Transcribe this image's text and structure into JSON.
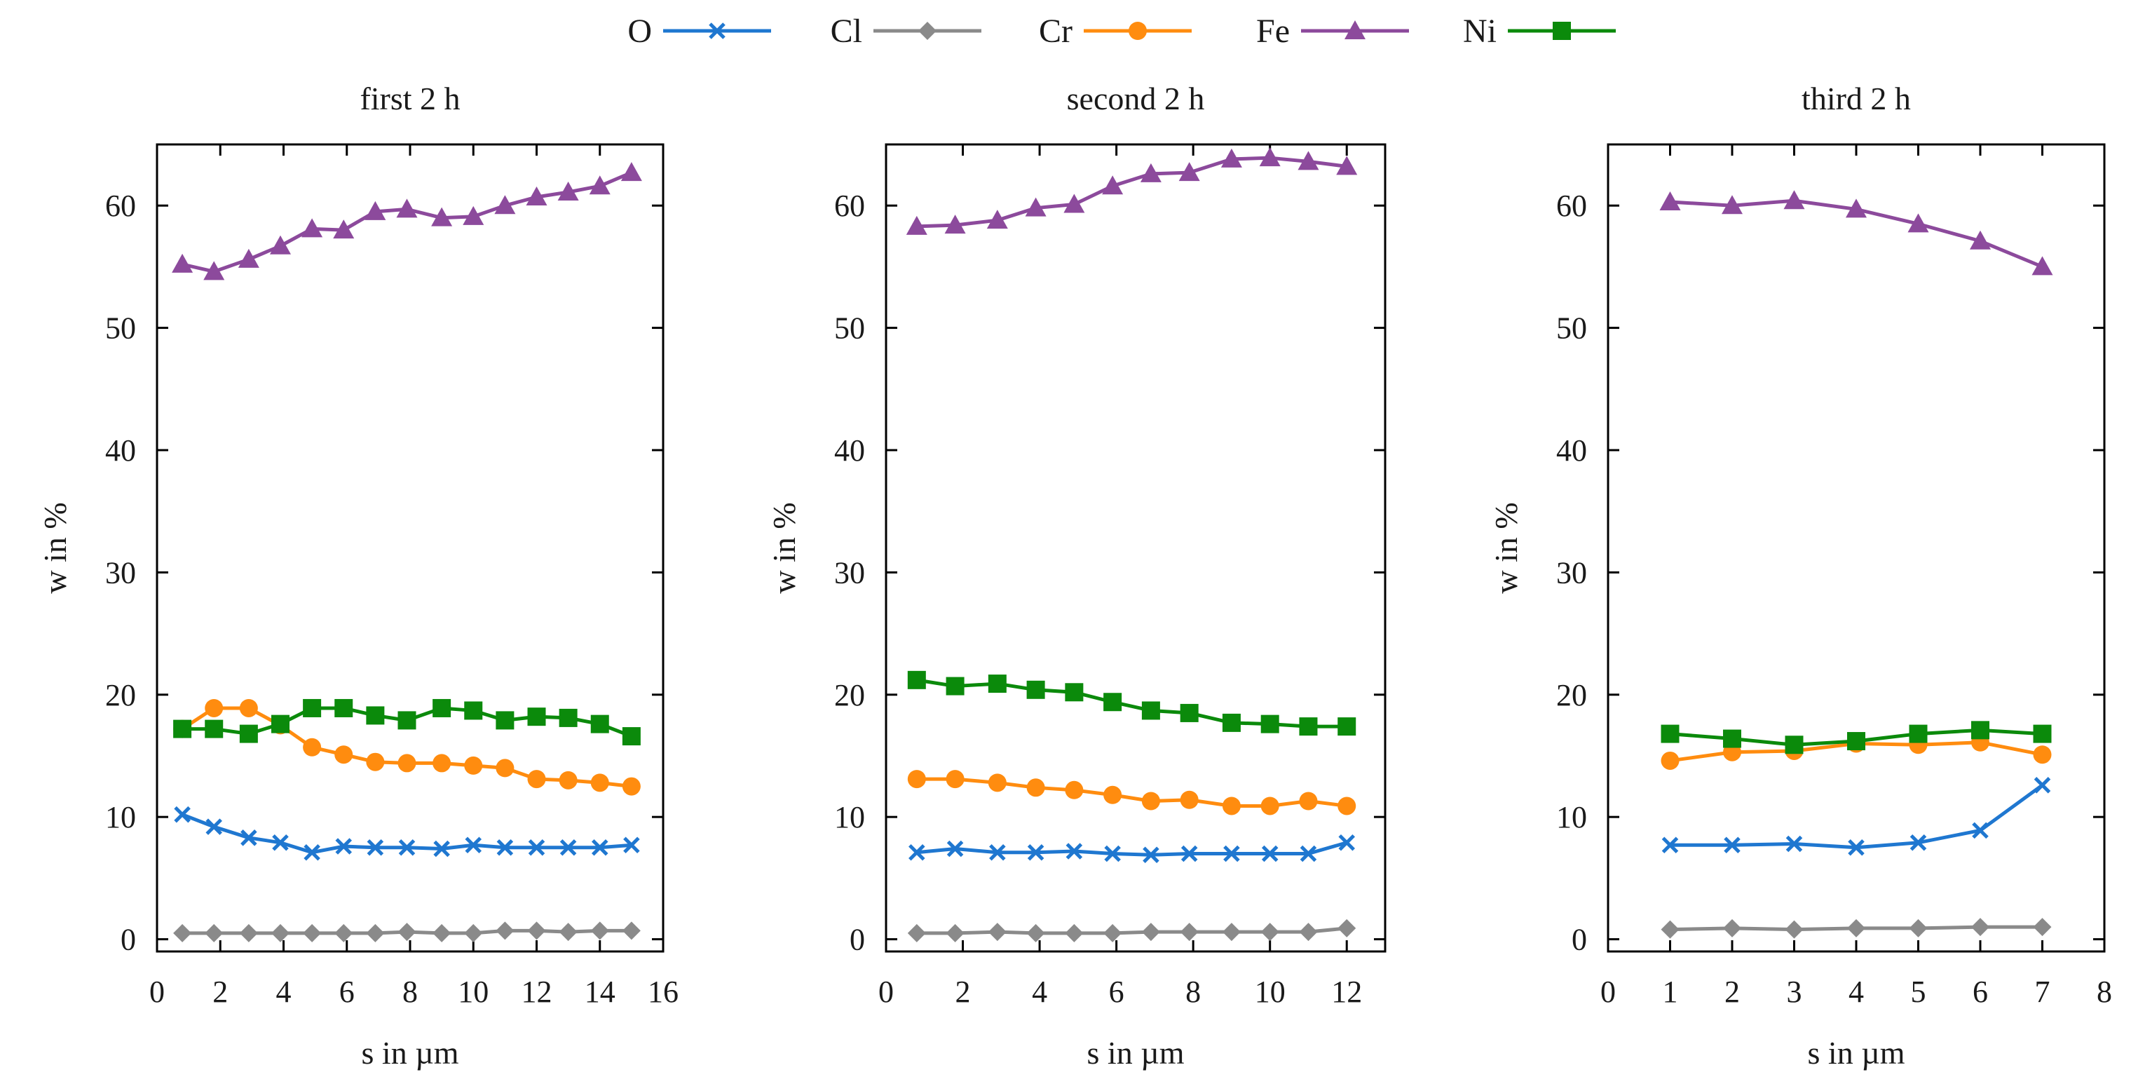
{
  "legend": {
    "position": "top-center",
    "series_order": [
      "O",
      "Cl",
      "Cr",
      "Fe",
      "Ni"
    ]
  },
  "series_styles": {
    "O": {
      "color": "#1f77d0",
      "marker": "x"
    },
    "Cl": {
      "color": "#8a8a8a",
      "marker": "diamond"
    },
    "Cr": {
      "color": "#ff8c0f",
      "marker": "circle"
    },
    "Fe": {
      "color": "#8c4a9c",
      "marker": "triangle"
    },
    "Ni": {
      "color": "#0b8a0b",
      "marker": "square"
    }
  },
  "chart_data": [
    {
      "type": "line",
      "title": "first 2 h",
      "xlabel": "s in µm",
      "ylabel": "w in %",
      "xlim": [
        0,
        16
      ],
      "ylim": [
        -1,
        65
      ],
      "xticks": [
        0,
        2,
        4,
        6,
        8,
        10,
        12,
        14,
        16
      ],
      "yticks": [
        0,
        10,
        20,
        30,
        40,
        50,
        60
      ],
      "grid": false,
      "x": [
        0.8,
        1.8,
        2.9,
        3.9,
        4.9,
        5.9,
        6.9,
        7.9,
        9.0,
        10.0,
        11.0,
        12.0,
        13.0,
        14.0,
        15.0
      ],
      "series": [
        {
          "name": "O",
          "values": [
            10.2,
            9.2,
            8.3,
            7.9,
            7.1,
            7.6,
            7.5,
            7.5,
            7.4,
            7.7,
            7.5,
            7.5,
            7.5,
            7.5,
            7.7
          ]
        },
        {
          "name": "Cl",
          "values": [
            0.5,
            0.5,
            0.5,
            0.5,
            0.5,
            0.5,
            0.5,
            0.6,
            0.5,
            0.5,
            0.7,
            0.7,
            0.6,
            0.7,
            0.7
          ]
        },
        {
          "name": "Cr",
          "values": [
            17.2,
            18.9,
            18.9,
            17.5,
            15.7,
            15.1,
            14.5,
            14.4,
            14.4,
            14.2,
            14.0,
            13.1,
            13.0,
            12.8,
            12.5
          ]
        },
        {
          "name": "Fe",
          "values": [
            55.2,
            54.6,
            55.6,
            56.7,
            58.1,
            58.0,
            59.5,
            59.7,
            59.0,
            59.1,
            60.0,
            60.7,
            61.1,
            61.6,
            62.7
          ]
        },
        {
          "name": "Ni",
          "values": [
            17.2,
            17.2,
            16.8,
            17.6,
            18.9,
            18.9,
            18.3,
            17.9,
            18.9,
            18.7,
            17.9,
            18.2,
            18.1,
            17.6,
            16.6
          ]
        }
      ]
    },
    {
      "type": "line",
      "title": "second 2 h",
      "xlabel": "s in µm",
      "ylabel": "w in %",
      "xlim": [
        0,
        13
      ],
      "ylim": [
        -1,
        65
      ],
      "xticks": [
        0,
        2,
        4,
        6,
        8,
        10,
        12
      ],
      "yticks": [
        0,
        10,
        20,
        30,
        40,
        50,
        60
      ],
      "grid": false,
      "x": [
        0.8,
        1.8,
        2.9,
        3.9,
        4.9,
        5.9,
        6.9,
        7.9,
        9.0,
        10.0,
        11.0,
        12.0
      ],
      "series": [
        {
          "name": "O",
          "values": [
            7.1,
            7.4,
            7.1,
            7.1,
            7.2,
            7.0,
            6.9,
            7.0,
            7.0,
            7.0,
            7.0,
            7.9
          ]
        },
        {
          "name": "Cl",
          "values": [
            0.5,
            0.5,
            0.6,
            0.5,
            0.5,
            0.5,
            0.6,
            0.6,
            0.6,
            0.6,
            0.6,
            0.9
          ]
        },
        {
          "name": "Cr",
          "values": [
            13.1,
            13.1,
            12.8,
            12.4,
            12.2,
            11.8,
            11.3,
            11.4,
            10.9,
            10.9,
            11.3,
            10.9
          ]
        },
        {
          "name": "Fe",
          "values": [
            58.3,
            58.4,
            58.8,
            59.8,
            60.1,
            61.6,
            62.6,
            62.7,
            63.8,
            63.9,
            63.6,
            63.2
          ]
        },
        {
          "name": "Ni",
          "values": [
            21.2,
            20.7,
            20.9,
            20.4,
            20.2,
            19.4,
            18.7,
            18.5,
            17.7,
            17.6,
            17.4,
            17.4
          ]
        }
      ]
    },
    {
      "type": "line",
      "title": "third 2 h",
      "xlabel": "s in µm",
      "ylabel": "w in %",
      "xlim": [
        0,
        8
      ],
      "ylim": [
        -1,
        65
      ],
      "xticks": [
        0,
        1,
        2,
        3,
        4,
        5,
        6,
        7,
        8
      ],
      "yticks": [
        0,
        10,
        20,
        30,
        40,
        50,
        60
      ],
      "grid": false,
      "x": [
        1,
        2,
        3,
        4,
        5,
        6,
        7
      ],
      "series": [
        {
          "name": "O",
          "values": [
            7.7,
            7.7,
            7.8,
            7.5,
            7.9,
            8.9,
            12.6
          ]
        },
        {
          "name": "Cl",
          "values": [
            0.8,
            0.9,
            0.8,
            0.9,
            0.9,
            1.0,
            1.0
          ]
        },
        {
          "name": "Cr",
          "values": [
            14.6,
            15.3,
            15.4,
            16.0,
            15.9,
            16.1,
            15.1
          ]
        },
        {
          "name": "Fe",
          "values": [
            60.3,
            60.0,
            60.4,
            59.7,
            58.5,
            57.1,
            55.0
          ]
        },
        {
          "name": "Ni",
          "values": [
            16.8,
            16.4,
            15.9,
            16.2,
            16.8,
            17.1,
            16.8
          ]
        }
      ]
    }
  ]
}
